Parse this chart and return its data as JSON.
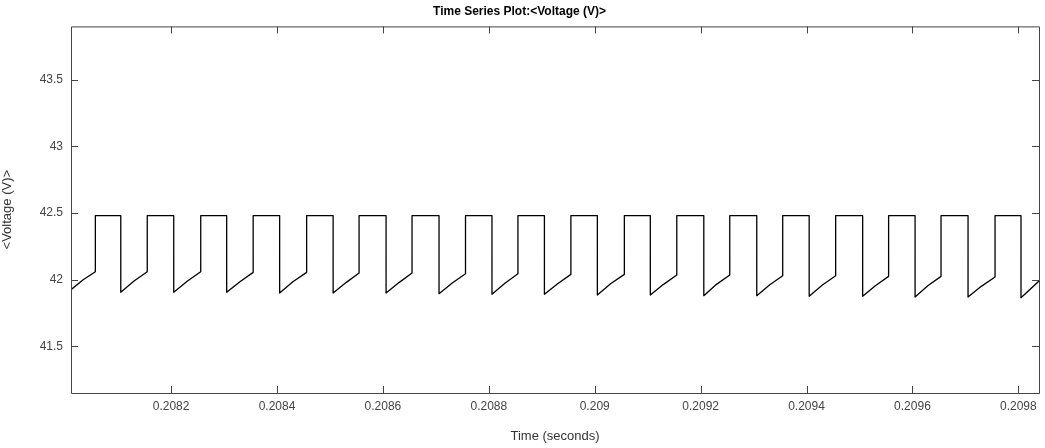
{
  "chart_data": {
    "type": "line",
    "title": "Time Series Plot:<Voltage (V)>",
    "xlabel": "Time (seconds)",
    "ylabel": "<Voltage (V)>",
    "xlim": [
      0.208011,
      0.209839
    ],
    "xticks": [
      0.2082,
      0.2084,
      0.2086,
      0.2088,
      0.209,
      0.2092,
      0.2094,
      0.2096,
      0.2098
    ],
    "ylim": [
      41.15,
      43.9
    ],
    "yticks": [
      41.5,
      42,
      42.5,
      43,
      43.5
    ],
    "grid": false,
    "legend": false,
    "marker": "none",
    "line_style": "solid",
    "series": [
      {
        "color": "#000000",
        "x": [
          0.208011,
          0.208034,
          0.208057,
          0.208057,
          0.208105,
          0.208105,
          0.20813,
          0.208155,
          0.208155,
          0.208205,
          0.208205,
          0.208231,
          0.208256,
          0.208256,
          0.208305,
          0.208305,
          0.20833,
          0.208355,
          0.208355,
          0.208405,
          0.208405,
          0.20843,
          0.208456,
          0.208456,
          0.208506,
          0.208506,
          0.208531,
          0.208555,
          0.208555,
          0.208606,
          0.208606,
          0.208631,
          0.208655,
          0.208655,
          0.208706,
          0.208706,
          0.208731,
          0.208756,
          0.208756,
          0.208806,
          0.208806,
          0.208831,
          0.208855,
          0.208855,
          0.208905,
          0.208905,
          0.20893,
          0.208955,
          0.208955,
          0.209005,
          0.209005,
          0.20903,
          0.209056,
          0.209056,
          0.209105,
          0.209105,
          0.20913,
          0.209155,
          0.209155,
          0.209206,
          0.209206,
          0.20923,
          0.209255,
          0.209255,
          0.209306,
          0.209306,
          0.20933,
          0.209355,
          0.209355,
          0.209405,
          0.209405,
          0.20943,
          0.209455,
          0.209455,
          0.209506,
          0.209506,
          0.20953,
          0.209555,
          0.209555,
          0.209605,
          0.209605,
          0.209629,
          0.209654,
          0.209654,
          0.209705,
          0.209705,
          0.20973,
          0.209756,
          0.209756,
          0.209805,
          0.209805,
          0.209839
        ],
        "values": [
          41.925,
          42.0,
          42.06,
          42.48,
          42.48,
          41.905,
          41.99,
          42.06,
          42.48,
          42.48,
          41.905,
          41.99,
          42.06,
          42.48,
          42.48,
          41.905,
          41.985,
          42.055,
          42.48,
          42.48,
          41.9,
          41.985,
          42.055,
          42.48,
          42.48,
          41.9,
          41.98,
          42.05,
          42.48,
          42.48,
          41.9,
          41.98,
          42.05,
          42.48,
          42.48,
          41.895,
          41.975,
          42.045,
          42.48,
          42.48,
          41.89,
          41.975,
          42.045,
          42.48,
          42.48,
          41.89,
          41.97,
          42.04,
          42.48,
          42.48,
          41.885,
          41.97,
          42.04,
          42.48,
          42.48,
          41.885,
          41.965,
          42.035,
          42.48,
          42.48,
          41.88,
          41.965,
          42.035,
          42.48,
          42.48,
          41.88,
          41.96,
          42.03,
          42.48,
          42.48,
          41.875,
          41.96,
          42.03,
          42.48,
          42.48,
          41.875,
          41.955,
          42.025,
          42.48,
          42.48,
          41.87,
          41.955,
          42.025,
          42.48,
          42.48,
          41.87,
          41.95,
          42.02,
          42.48,
          42.48,
          41.865,
          41.99
        ]
      }
    ]
  }
}
